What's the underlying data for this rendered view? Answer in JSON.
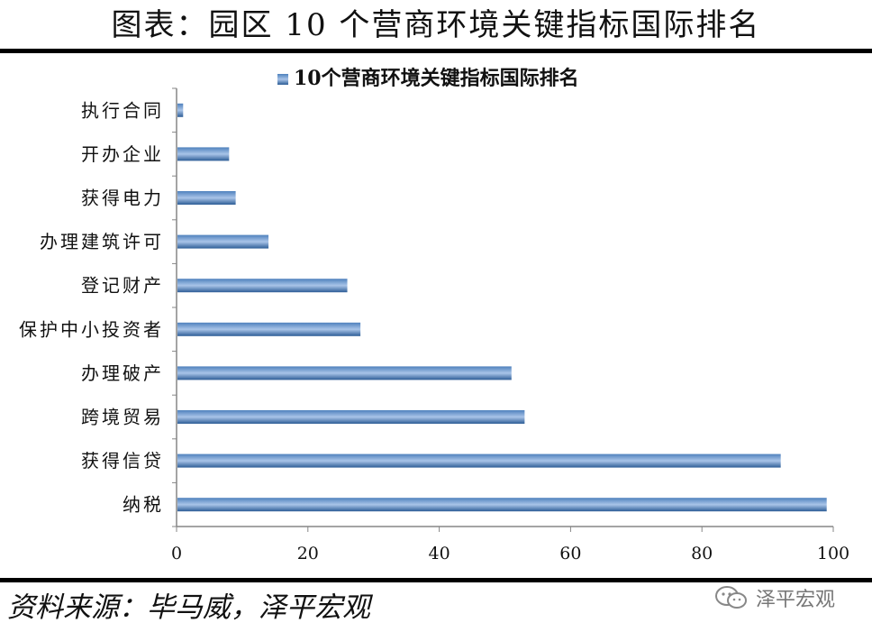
{
  "header": {
    "title": "图表：园区 10 个营商环境关键指标国际排名"
  },
  "footer": {
    "source": "资料来源：毕马威，泽平宏观",
    "watermark": "泽平宏观"
  },
  "watermark_icon": "wechat-icon",
  "colors": {
    "bar": "#4f81bd",
    "bar_light": "#a9c4e8",
    "bar_dark": "#2d5d96",
    "axis": "#868686"
  },
  "chart_data": {
    "type": "bar",
    "orientation": "horizontal",
    "categories": [
      "执行合同",
      "开办企业",
      "获得电力",
      "办理建筑许可",
      "登记财产",
      "保护中小投资者",
      "办理破产",
      "跨境贸易",
      "获得信贷",
      "纳税"
    ],
    "series": [
      {
        "name": "10个营商环境关键指标国际排名",
        "values": [
          1,
          8,
          9,
          14,
          26,
          28,
          51,
          53,
          92,
          99
        ]
      }
    ],
    "xlim": [
      0,
      100
    ],
    "xticks": [
      0,
      20,
      40,
      60,
      80,
      100
    ],
    "legend_position": "top",
    "grid": false
  }
}
